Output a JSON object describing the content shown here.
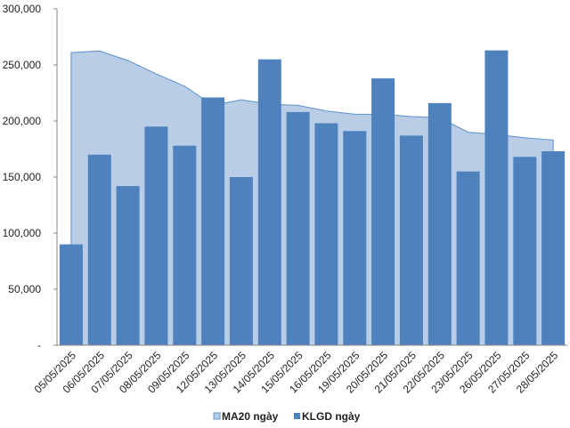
{
  "chart_data": {
    "type": "bar",
    "categories": [
      "05/05/2025",
      "06/05/2025",
      "07/05/2025",
      "08/05/2025",
      "09/05/2025",
      "12/05/2025",
      "13/05/2025",
      "14/05/2025",
      "15/05/2025",
      "16/05/2025",
      "19/05/2025",
      "20/05/2025",
      "21/05/2025",
      "22/05/2025",
      "23/05/2025",
      "26/05/2025",
      "27/05/2025",
      "28/05/2025"
    ],
    "series": [
      {
        "name": "MA20 ngày",
        "type": "area",
        "color": "#b9cde6",
        "line_color": "#5b8fc9",
        "values": [
          261000,
          262500,
          254000,
          242000,
          231000,
          214000,
          219000,
          215000,
          214000,
          209000,
          206000,
          206000,
          204000,
          203000,
          190000,
          188000,
          185000,
          183000
        ]
      },
      {
        "name": "KLGD ngày",
        "type": "bar",
        "color": "#4f81bd",
        "values": [
          90000,
          170000,
          142000,
          195000,
          178000,
          221000,
          150000,
          255000,
          208000,
          198000,
          191000,
          238000,
          187000,
          216000,
          155000,
          263000,
          168000,
          173000
        ]
      }
    ],
    "ylim": [
      0,
      300000
    ],
    "yticks": [
      "-",
      "50,000",
      "100,000",
      "150,000",
      "200,000",
      "250,000",
      "300,000"
    ],
    "ytick_values": [
      0,
      50000,
      100000,
      150000,
      200000,
      250000,
      300000
    ],
    "grid": false,
    "legend": "bottom",
    "title": "",
    "xlabel": "",
    "ylabel": ""
  }
}
